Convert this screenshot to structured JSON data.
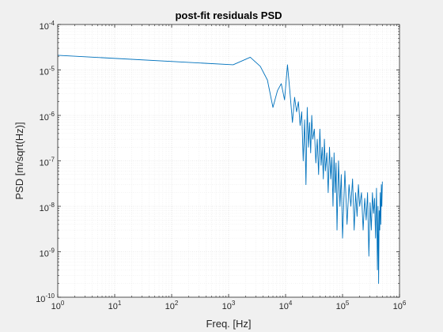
{
  "chart_data": {
    "type": "line",
    "title": "post-fit residuals PSD",
    "xlabel": "Freq. [Hz]",
    "ylabel": "PSD [m/sqrt(Hz)]",
    "xscale": "log",
    "yscale": "log",
    "xlim": [
      1,
      1000000
    ],
    "ylim": [
      1e-10,
      0.0001
    ],
    "grid": "major and minor",
    "line_color": "#0072bd",
    "x_ticks": [
      {
        "base": "10",
        "exp": "0"
      },
      {
        "base": "10",
        "exp": "1"
      },
      {
        "base": "10",
        "exp": "2"
      },
      {
        "base": "10",
        "exp": "3"
      },
      {
        "base": "10",
        "exp": "4"
      },
      {
        "base": "10",
        "exp": "5"
      },
      {
        "base": "10",
        "exp": "6"
      }
    ],
    "y_ticks": [
      {
        "base": "10",
        "exp": "-10"
      },
      {
        "base": "10",
        "exp": "-9"
      },
      {
        "base": "10",
        "exp": "-8"
      },
      {
        "base": "10",
        "exp": "-7"
      },
      {
        "base": "10",
        "exp": "-6"
      },
      {
        "base": "10",
        "exp": "-5"
      },
      {
        "base": "10",
        "exp": "-4"
      }
    ],
    "series": [
      {
        "x": [
          1,
          1200,
          2400,
          3600,
          4800,
          6000,
          7200,
          8400,
          9600,
          10800,
          12000,
          13200,
          14400,
          15600,
          16800,
          18000,
          19200,
          20400,
          21600,
          22800,
          24000,
          25200,
          26400,
          27600,
          28800,
          30000,
          32000,
          34000,
          36000,
          38000,
          40000,
          42000,
          44000,
          46000,
          48000,
          50000,
          53000,
          56000,
          59000,
          62000,
          65000,
          68000,
          71000,
          74000,
          77000,
          80000,
          85000,
          90000,
          95000,
          100000,
          110000,
          120000,
          130000,
          140000,
          150000,
          160000,
          170000,
          180000,
          190000,
          200000,
          215000,
          230000,
          245000,
          260000,
          275000,
          290000,
          305000,
          320000,
          335000,
          350000,
          365000,
          380000,
          395000,
          410000,
          420000,
          430000,
          440000,
          450000,
          460000,
          470000,
          480000,
          490000,
          500000
        ],
        "y": [
          2.1e-05,
          1.3e-05,
          1.9e-05,
          1.2e-05,
          6e-06,
          1.5e-06,
          3.5e-06,
          5e-06,
          2.2e-06,
          1.3e-05,
          3e-06,
          7e-07,
          2.5e-06,
          1.2e-06,
          2e-06,
          6e-07,
          1.2e-06,
          1e-07,
          8e-07,
          3e-08,
          1.5e-06,
          2e-07,
          7e-07,
          1.5e-07,
          1e-06,
          3e-07,
          5e-07,
          9e-08,
          3e-07,
          5e-08,
          5e-07,
          8e-08,
          2e-07,
          4e-08,
          3e-07,
          6e-08,
          1.5e-07,
          2e-08,
          2e-07,
          4e-08,
          1.2e-07,
          1e-08,
          1.5e-07,
          2e-08,
          9e-08,
          3e-09,
          1e-07,
          1e-08,
          5e-08,
          2e-09,
          6e-08,
          4e-09,
          3e-08,
          1e-08,
          4e-08,
          3e-09,
          2e-08,
          6e-09,
          3e-08,
          1e-08,
          2e-08,
          3e-09,
          1.5e-08,
          5e-09,
          2e-08,
          8e-10,
          1.2e-08,
          3e-09,
          2e-08,
          7e-09,
          1.5e-08,
          2e-09,
          2.5e-08,
          4e-10,
          1e-08,
          2e-10,
          8e-09,
          3e-09,
          2e-08,
          4e-09,
          3e-08,
          1e-08,
          3.5e-08
        ]
      }
    ]
  }
}
